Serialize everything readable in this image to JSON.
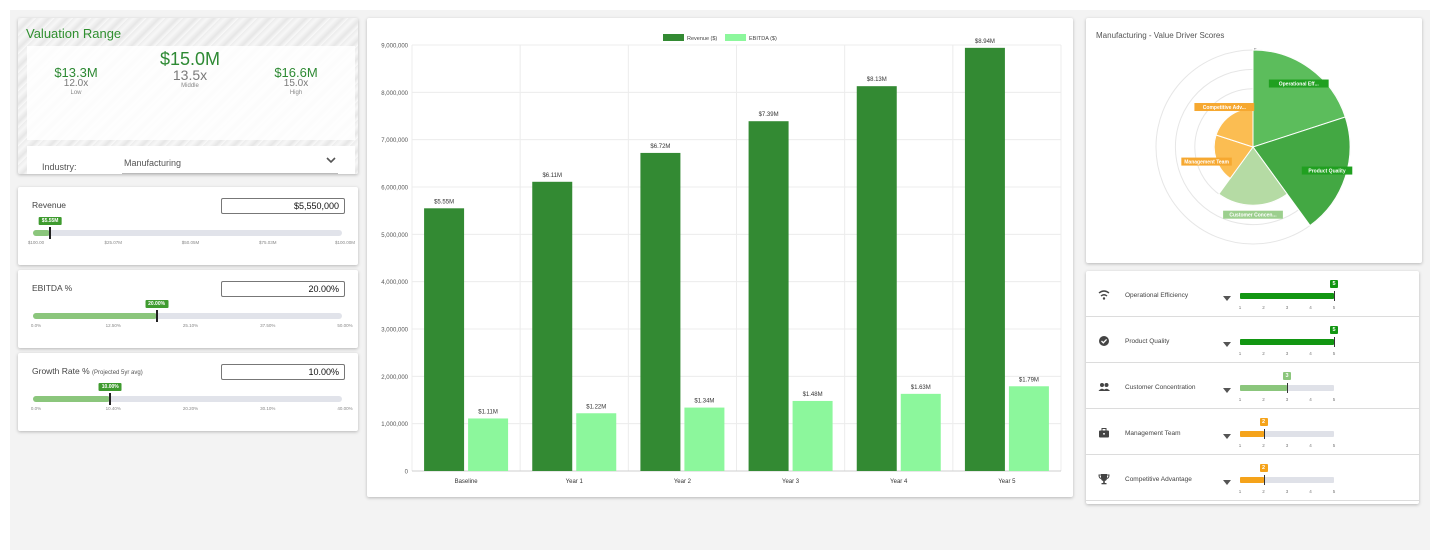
{
  "valuation": {
    "title": "Valuation Range",
    "low": {
      "amount": "$13.3M",
      "multiple": "12.0x",
      "label": "Low"
    },
    "middle": {
      "amount": "$15.0M",
      "multiple": "13.5x",
      "label": "Middle"
    },
    "high": {
      "amount": "$16.6M",
      "multiple": "15.0x",
      "label": "High"
    },
    "industry_label": "Industry:",
    "industry_value": "Manufacturing"
  },
  "sliders": {
    "revenue": {
      "title": "Revenue",
      "subtitle": "",
      "value": "$5,550,000",
      "badge": "$5.55M",
      "fraction": 0.0555,
      "ticks": [
        "$100.00",
        "$25.07M",
        "$50.05M",
        "$75.03M",
        "$100.00M"
      ]
    },
    "ebitda": {
      "title": "EBITDA %",
      "subtitle": "",
      "value": "20.00%",
      "badge": "20.00%",
      "fraction": 0.4,
      "ticks": [
        "0.0%",
        "12.50%",
        "25.10%",
        "37.50%",
        "50.00%"
      ]
    },
    "growth": {
      "title": "Growth Rate %",
      "subtitle": "(Projected 5yr avg)",
      "value": "10.00%",
      "badge": "10.00%",
      "fraction": 0.25,
      "ticks": [
        "0.0%",
        "10.40%",
        "20.20%",
        "30.10%",
        "40.00%"
      ]
    }
  },
  "chart_data": {
    "type": "bar",
    "title": "",
    "xlabel": "",
    "ylabel": "",
    "categories": [
      "Baseline",
      "Year 1",
      "Year 2",
      "Year 3",
      "Year 4",
      "Year 5"
    ],
    "series": [
      {
        "name": "Revenue ($)",
        "color": "#338a33",
        "values": [
          5550000,
          6110000,
          6720000,
          7390000,
          8130000,
          8940000
        ],
        "labels": [
          "$5.55M",
          "$6.11M",
          "$6.72M",
          "$7.39M",
          "$8.13M",
          "$8.94M"
        ]
      },
      {
        "name": "EBITDA ($)",
        "color": "#8cf79c",
        "values": [
          1110000,
          1220000,
          1340000,
          1480000,
          1630000,
          1790000
        ],
        "labels": [
          "$1.11M",
          "$1.22M",
          "$1.34M",
          "$1.48M",
          "$1.63M",
          "$1.79M"
        ]
      }
    ],
    "ylim": [
      0,
      9000000
    ],
    "yticks": [
      "0",
      "1,000,000",
      "2,000,000",
      "3,000,000",
      "4,000,000",
      "5,000,000",
      "6,000,000",
      "7,000,000",
      "8,000,000",
      "9,000,000"
    ],
    "grid": true,
    "legend": "top-center"
  },
  "radar": {
    "title": "Manufacturing - Value Driver Scores",
    "chart_data": {
      "type": "polar-area",
      "max": 5,
      "scale_top_label": "5",
      "segments": [
        {
          "name": "Operational Efficiency",
          "label": "Operational Eff...",
          "value": 5,
          "color": "#5cbd5c",
          "label_color": "#20a020"
        },
        {
          "name": "Product Quality",
          "label": "Product Quality",
          "value": 5,
          "color": "#43a843",
          "label_color": "#20a020"
        },
        {
          "name": "Customer Concentration",
          "label": "Customer Concen...",
          "value": 3,
          "color": "#b5dba4",
          "label_color": "#9ccf8e"
        },
        {
          "name": "Management Team",
          "label": "Management Team",
          "value": 2,
          "color": "#fbbd52",
          "label_color": "#f6a830"
        },
        {
          "name": "Competitive Advantage",
          "label": "Competitive Adv...",
          "value": 2,
          "color": "#fbbd52",
          "label_color": "#f6a830"
        }
      ]
    }
  },
  "drivers": {
    "ticks": [
      "1",
      "2",
      "3",
      "4",
      "5"
    ],
    "items": [
      {
        "name": "Operational Efficiency",
        "icon": "signal-wave-icon",
        "score": "5",
        "value": 5,
        "color": "#129612"
      },
      {
        "name": "Product Quality",
        "icon": "verified-check-icon",
        "score": "5",
        "value": 5,
        "color": "#129612"
      },
      {
        "name": "Customer Concentration",
        "icon": "people-icon",
        "score": "3",
        "value": 3,
        "color": "#8bc67c"
      },
      {
        "name": "Management Team",
        "icon": "briefcase-icon",
        "score": "2",
        "value": 2,
        "color": "#f5a31a"
      },
      {
        "name": "Competitive Advantage",
        "icon": "trophy-icon",
        "score": "2",
        "value": 2,
        "color": "#f5a31a"
      }
    ]
  }
}
